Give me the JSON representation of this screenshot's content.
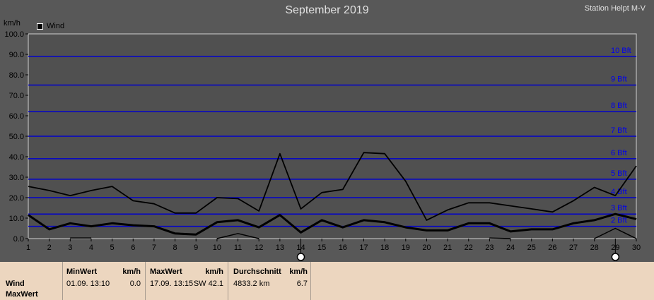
{
  "header": {
    "title": "September 2019",
    "station": "Station Helpt M-V"
  },
  "legend": {
    "label": "Wind"
  },
  "beaufort_labels": [
    {
      "label": "2 Bft",
      "value": 6
    },
    {
      "label": "3 Bft",
      "value": 12
    },
    {
      "label": "4 Bft",
      "value": 20
    },
    {
      "label": "5 Bft",
      "value": 29
    },
    {
      "label": "6 Bft",
      "value": 39
    },
    {
      "label": "7 Bft",
      "value": 50
    },
    {
      "label": "8 Bft",
      "value": 62
    },
    {
      "label": "9 Bft",
      "value": 75
    },
    {
      "label": "10 Bft",
      "value": 89
    }
  ],
  "chart_data": {
    "type": "line",
    "title": "September 2019",
    "ylabel": "km/h",
    "xlabel": "",
    "ylim": [
      0,
      100
    ],
    "yticks": [
      "0.0",
      "10.0",
      "20.0",
      "30.0",
      "40.0",
      "50.0",
      "60.0",
      "70.0",
      "80.0",
      "90.0",
      "100.0"
    ],
    "x": [
      1,
      2,
      3,
      4,
      5,
      6,
      7,
      8,
      9,
      10,
      11,
      12,
      13,
      14,
      15,
      16,
      17,
      18,
      19,
      20,
      21,
      22,
      23,
      24,
      25,
      26,
      27,
      28,
      29,
      30
    ],
    "series": [
      {
        "name": "Wind",
        "values": [
          11.5,
          4.5,
          7.5,
          6,
          7.5,
          6.5,
          6,
          2.5,
          2,
          8,
          9,
          5.5,
          11.5,
          3,
          9,
          5.5,
          9,
          8,
          5.5,
          4,
          4,
          7.5,
          7.5,
          3.5,
          4.5,
          4.5,
          7.5,
          9,
          12,
          9.5
        ]
      },
      {
        "name": "MaxWert",
        "values": [
          25.5,
          23.5,
          21,
          23.5,
          25.5,
          18.5,
          17,
          12.5,
          12.5,
          20,
          19.5,
          13.5,
          41.5,
          14.5,
          22.5,
          24,
          42,
          41.5,
          28,
          9,
          14,
          17.5,
          17.5,
          16,
          14.5,
          13,
          18.5,
          25,
          21,
          35.5
        ]
      },
      {
        "values": [
          null,
          null,
          0.3,
          0.3,
          null,
          null,
          null,
          null,
          null,
          0,
          2.5,
          0,
          null,
          null,
          null,
          null,
          null,
          null,
          null,
          null,
          null,
          null,
          0.3,
          0,
          null,
          null,
          null,
          0,
          5,
          0
        ]
      }
    ],
    "beaufort_lines": [
      6,
      12,
      20,
      29,
      39,
      50,
      62,
      75,
      89
    ],
    "markers_x": [
      14,
      29
    ],
    "grid": false
  },
  "stats": {
    "rows": [
      "Wind",
      "MaxWert"
    ],
    "min": {
      "header": "MinWert",
      "unit": "km/h",
      "date": "01.09.  13:10",
      "value": "0.0"
    },
    "max": {
      "header": "MaxWert",
      "unit": "km/h",
      "date": "17.09.  13:15",
      "dir_value": "SW 42.1"
    },
    "avg": {
      "header": "Durchschnitt",
      "unit": "km/h",
      "distance": "4833.2 km",
      "value": "6.7"
    }
  }
}
